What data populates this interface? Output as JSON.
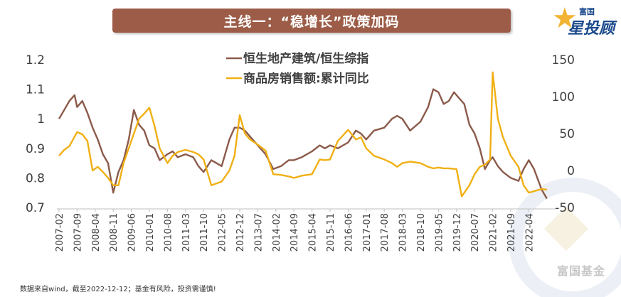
{
  "title": "主线一：“稳增长”政策加码",
  "logo": {
    "top": "富国",
    "main": "星投顾"
  },
  "watermark": "富国基金",
  "footnote": "数据来自wind，截至2022-12-12；基金有风险，投资需谨慎!",
  "colors": {
    "series1": "#8b5a4a",
    "series2": "#f0b014",
    "title_bg": "#9c5c47"
  },
  "chart_data": {
    "type": "line",
    "title": "",
    "xlabel": "",
    "ylabel": "",
    "left_ylim": [
      0.7,
      1.2
    ],
    "right_ylim": [
      -50,
      150
    ],
    "left_ticks": [
      "0.7",
      "0.8",
      "0.9",
      "1",
      "1.1",
      "1.2"
    ],
    "right_ticks": [
      "-50",
      "0",
      "50",
      "100",
      "150"
    ],
    "x_ticks": [
      "2007-02",
      "2007-09",
      "2008-04",
      "2008-11",
      "2009-06",
      "2010-01",
      "2010-08",
      "2011-03",
      "2011-10",
      "2012-05",
      "2012-12",
      "2013-07",
      "2014-02",
      "2014-09",
      "2015-04",
      "2015-11",
      "2016-06",
      "2017-01",
      "2017-08",
      "2018-03",
      "2018-10",
      "2019-05",
      "2019-12",
      "2020-07",
      "2021-02",
      "2021-09",
      "2022-04"
    ],
    "grid": false,
    "legend": "top-center",
    "series": [
      {
        "name": "恒生地产建筑/恒生综指",
        "axis": "left",
        "color": "#8b5a4a",
        "points": [
          [
            "2007-02",
            1.0
          ],
          [
            "2007-04",
            1.03
          ],
          [
            "2007-06",
            1.06
          ],
          [
            "2007-08",
            1.08
          ],
          [
            "2007-09",
            1.04
          ],
          [
            "2007-11",
            1.06
          ],
          [
            "2008-01",
            1.02
          ],
          [
            "2008-03",
            0.97
          ],
          [
            "2008-05",
            0.93
          ],
          [
            "2008-07",
            0.88
          ],
          [
            "2008-09",
            0.85
          ],
          [
            "2008-11",
            0.75
          ],
          [
            "2009-01",
            0.82
          ],
          [
            "2009-03",
            0.86
          ],
          [
            "2009-05",
            0.93
          ],
          [
            "2009-07",
            1.03
          ],
          [
            "2009-09",
            0.98
          ],
          [
            "2009-11",
            0.96
          ],
          [
            "2010-01",
            0.91
          ],
          [
            "2010-03",
            0.9
          ],
          [
            "2010-05",
            0.86
          ],
          [
            "2010-08",
            0.88
          ],
          [
            "2010-10",
            0.89
          ],
          [
            "2010-12",
            0.87
          ],
          [
            "2011-03",
            0.88
          ],
          [
            "2011-06",
            0.87
          ],
          [
            "2011-08",
            0.84
          ],
          [
            "2011-10",
            0.82
          ],
          [
            "2012-01",
            0.86
          ],
          [
            "2012-05",
            0.84
          ],
          [
            "2012-08",
            0.93
          ],
          [
            "2012-10",
            0.97
          ],
          [
            "2012-12",
            0.97
          ],
          [
            "2013-02",
            0.96
          ],
          [
            "2013-04",
            0.94
          ],
          [
            "2013-07",
            0.91
          ],
          [
            "2013-10",
            0.88
          ],
          [
            "2014-01",
            0.83
          ],
          [
            "2014-04",
            0.84
          ],
          [
            "2014-07",
            0.86
          ],
          [
            "2014-09",
            0.86
          ],
          [
            "2014-12",
            0.87
          ],
          [
            "2015-04",
            0.89
          ],
          [
            "2015-07",
            0.91
          ],
          [
            "2015-09",
            0.9
          ],
          [
            "2015-11",
            0.91
          ],
          [
            "2016-02",
            0.9
          ],
          [
            "2016-06",
            0.92
          ],
          [
            "2016-09",
            0.96
          ],
          [
            "2016-11",
            0.95
          ],
          [
            "2017-01",
            0.93
          ],
          [
            "2017-04",
            0.96
          ],
          [
            "2017-08",
            0.97
          ],
          [
            "2017-11",
            1.0
          ],
          [
            "2018-01",
            1.01
          ],
          [
            "2018-03",
            1.0
          ],
          [
            "2018-06",
            0.96
          ],
          [
            "2018-10",
            0.99
          ],
          [
            "2019-01",
            1.04
          ],
          [
            "2019-03",
            1.1
          ],
          [
            "2019-05",
            1.09
          ],
          [
            "2019-07",
            1.05
          ],
          [
            "2019-09",
            1.06
          ],
          [
            "2019-11",
            1.09
          ],
          [
            "2020-01",
            1.07
          ],
          [
            "2020-03",
            1.05
          ],
          [
            "2020-05",
            0.98
          ],
          [
            "2020-07",
            0.95
          ],
          [
            "2020-09",
            0.9
          ],
          [
            "2020-11",
            0.83
          ],
          [
            "2021-01",
            0.86
          ],
          [
            "2021-02",
            0.87
          ],
          [
            "2021-04",
            0.84
          ],
          [
            "2021-06",
            0.82
          ],
          [
            "2021-09",
            0.8
          ],
          [
            "2021-12",
            0.79
          ],
          [
            "2022-02",
            0.83
          ],
          [
            "2022-04",
            0.86
          ],
          [
            "2022-06",
            0.83
          ],
          [
            "2022-09",
            0.76
          ],
          [
            "2022-11",
            0.73
          ]
        ]
      },
      {
        "name": "商品房销售额:累计同比",
        "axis": "right",
        "color": "#f0b014",
        "points": [
          [
            "2007-02",
            20
          ],
          [
            "2007-04",
            28
          ],
          [
            "2007-06",
            33
          ],
          [
            "2007-09",
            52
          ],
          [
            "2007-11",
            49
          ],
          [
            "2008-01",
            40
          ],
          [
            "2008-03",
            0
          ],
          [
            "2008-05",
            5
          ],
          [
            "2008-07",
            -2
          ],
          [
            "2008-09",
            -10
          ],
          [
            "2008-11",
            -20
          ],
          [
            "2009-01",
            -20
          ],
          [
            "2009-03",
            10
          ],
          [
            "2009-06",
            40
          ],
          [
            "2009-09",
            70
          ],
          [
            "2009-11",
            77
          ],
          [
            "2010-01",
            85
          ],
          [
            "2010-03",
            60
          ],
          [
            "2010-05",
            30
          ],
          [
            "2010-08",
            10
          ],
          [
            "2010-10",
            20
          ],
          [
            "2010-12",
            25
          ],
          [
            "2011-03",
            28
          ],
          [
            "2011-06",
            25
          ],
          [
            "2011-08",
            22
          ],
          [
            "2011-10",
            15
          ],
          [
            "2012-01",
            -20
          ],
          [
            "2012-05",
            -15
          ],
          [
            "2012-08",
            0
          ],
          [
            "2012-10",
            20
          ],
          [
            "2012-12",
            75
          ],
          [
            "2013-02",
            50
          ],
          [
            "2013-04",
            42
          ],
          [
            "2013-07",
            35
          ],
          [
            "2013-10",
            27
          ],
          [
            "2014-01",
            -5
          ],
          [
            "2014-04",
            -6
          ],
          [
            "2014-07",
            -8
          ],
          [
            "2014-09",
            -10
          ],
          [
            "2014-12",
            -7
          ],
          [
            "2015-04",
            -5
          ],
          [
            "2015-07",
            15
          ],
          [
            "2015-09",
            14
          ],
          [
            "2015-11",
            15
          ],
          [
            "2016-02",
            40
          ],
          [
            "2016-06",
            55
          ],
          [
            "2016-09",
            42
          ],
          [
            "2016-11",
            45
          ],
          [
            "2017-01",
            30
          ],
          [
            "2017-04",
            20
          ],
          [
            "2017-08",
            15
          ],
          [
            "2017-11",
            10
          ],
          [
            "2018-01",
            5
          ],
          [
            "2018-03",
            10
          ],
          [
            "2018-06",
            12
          ],
          [
            "2018-10",
            10
          ],
          [
            "2019-01",
            5
          ],
          [
            "2019-03",
            3
          ],
          [
            "2019-05",
            4
          ],
          [
            "2019-07",
            3
          ],
          [
            "2019-09",
            3
          ],
          [
            "2019-12",
            2
          ],
          [
            "2020-02",
            -35
          ],
          [
            "2020-05",
            -20
          ],
          [
            "2020-07",
            -5
          ],
          [
            "2020-09",
            5
          ],
          [
            "2020-11",
            8
          ],
          [
            "2021-01",
            15
          ],
          [
            "2021-02",
            133
          ],
          [
            "2021-04",
            70
          ],
          [
            "2021-06",
            45
          ],
          [
            "2021-09",
            20
          ],
          [
            "2021-12",
            5
          ],
          [
            "2022-02",
            -20
          ],
          [
            "2022-04",
            -30
          ],
          [
            "2022-06",
            -28
          ],
          [
            "2022-09",
            -25
          ],
          [
            "2022-11",
            -26
          ]
        ]
      }
    ]
  }
}
